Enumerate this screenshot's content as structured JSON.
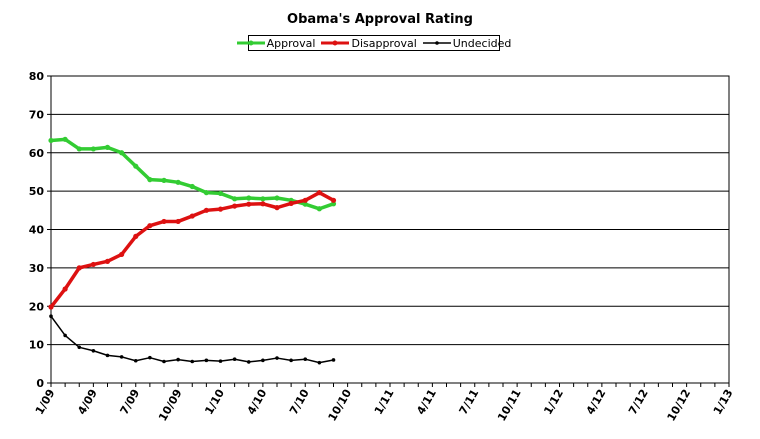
{
  "chart_data": {
    "type": "line",
    "title": "Obama's Approval Rating",
    "xlabel": "",
    "ylabel": "",
    "ylim": [
      0,
      80
    ],
    "yticks": [
      "0",
      "10",
      "20",
      "30",
      "40",
      "50",
      "60",
      "70",
      "80"
    ],
    "xticks": [
      "1/09",
      "4/09",
      "7/09",
      "10/09",
      "1/10",
      "4/10",
      "7/10",
      "10/10",
      "1/11",
      "4/11",
      "7/11",
      "10/11",
      "1/12",
      "4/12",
      "7/12",
      "10/12",
      "1/13"
    ],
    "x_months_per_point": 1,
    "grid": "horizontal",
    "legend_position": "top-center",
    "series": [
      {
        "name": "Approval",
        "color": "#33cc33",
        "values": [
          63.2,
          63.5,
          61,
          61,
          61.4,
          60,
          56.5,
          53,
          52.8,
          52.3,
          51.2,
          49.6,
          49.4,
          48,
          48.2,
          48,
          48.2,
          47.6,
          46.6,
          45.4,
          46.7
        ]
      },
      {
        "name": "Disapproval",
        "color": "#dd1111",
        "values": [
          19.8,
          24.5,
          30,
          30.9,
          31.7,
          33.5,
          38.2,
          41,
          42.1,
          42.1,
          43.5,
          45,
          45.3,
          46.1,
          46.6,
          46.7,
          45.7,
          46.8,
          47.6,
          49.6,
          47.6
        ]
      },
      {
        "name": "Undecided",
        "color": "#000000",
        "values": [
          17.4,
          12.4,
          9.3,
          8.4,
          7.2,
          6.8,
          5.8,
          6.6,
          5.6,
          6.1,
          5.6,
          5.9,
          5.7,
          6.2,
          5.5,
          5.9,
          6.5,
          5.9,
          6.2,
          5.3,
          6
        ]
      }
    ]
  }
}
